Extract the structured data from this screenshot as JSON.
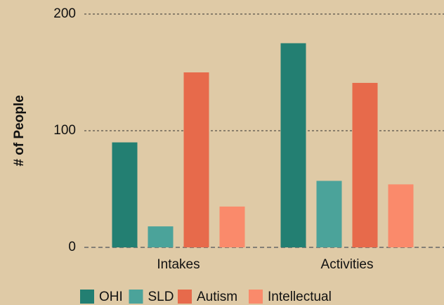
{
  "chart_data": {
    "type": "bar",
    "categories": [
      "Intakes",
      "Activities"
    ],
    "ylabel": "# of People",
    "ylim": [
      0,
      200
    ],
    "yticks": [
      0,
      100,
      200
    ],
    "grid": true,
    "legend": "bottom",
    "series": [
      {
        "name": "OHI",
        "color": "#237f72",
        "values": [
          90,
          175
        ]
      },
      {
        "name": "SLD",
        "color": "#4ba39a",
        "values": [
          18,
          57
        ]
      },
      {
        "name": "Autism",
        "color": "#e76a4b",
        "values": [
          150,
          141
        ]
      },
      {
        "name": "Intellectual",
        "color": "#fa8a6b",
        "values": [
          35,
          54
        ]
      }
    ]
  }
}
